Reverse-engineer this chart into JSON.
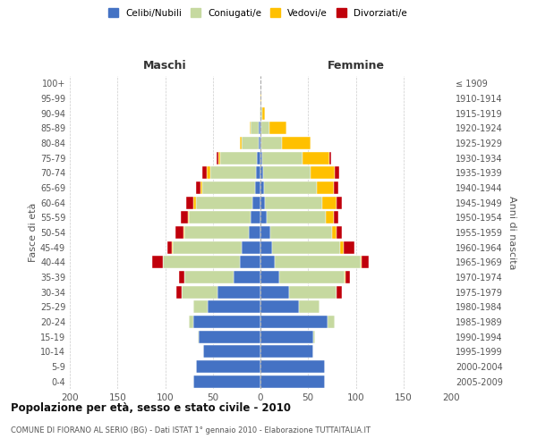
{
  "age_groups": [
    "0-4",
    "5-9",
    "10-14",
    "15-19",
    "20-24",
    "25-29",
    "30-34",
    "35-39",
    "40-44",
    "45-49",
    "50-54",
    "55-59",
    "60-64",
    "65-69",
    "70-74",
    "75-79",
    "80-84",
    "85-89",
    "90-94",
    "95-99",
    "100+"
  ],
  "birth_years": [
    "2005-2009",
    "2000-2004",
    "1995-1999",
    "1990-1994",
    "1985-1989",
    "1980-1984",
    "1975-1979",
    "1970-1974",
    "1965-1969",
    "1960-1964",
    "1955-1959",
    "1950-1954",
    "1945-1949",
    "1940-1944",
    "1935-1939",
    "1930-1934",
    "1925-1929",
    "1920-1924",
    "1915-1919",
    "1910-1914",
    "≤ 1909"
  ],
  "maschi": {
    "celibi": [
      70,
      68,
      60,
      65,
      70,
      55,
      45,
      28,
      22,
      20,
      12,
      10,
      8,
      6,
      5,
      4,
      2,
      2,
      0,
      0,
      0
    ],
    "coniugati": [
      0,
      0,
      0,
      1,
      5,
      15,
      38,
      52,
      80,
      72,
      68,
      65,
      60,
      55,
      48,
      38,
      18,
      8,
      1,
      0,
      0
    ],
    "vedovi": [
      0,
      0,
      0,
      0,
      0,
      0,
      0,
      0,
      0,
      1,
      1,
      1,
      2,
      2,
      3,
      2,
      2,
      1,
      0,
      0,
      0
    ],
    "divorziati": [
      0,
      0,
      0,
      0,
      0,
      0,
      5,
      5,
      12,
      5,
      8,
      8,
      8,
      5,
      5,
      2,
      0,
      0,
      0,
      0,
      0
    ]
  },
  "femmine": {
    "nubili": [
      68,
      68,
      55,
      55,
      70,
      40,
      30,
      20,
      15,
      12,
      10,
      7,
      5,
      4,
      3,
      2,
      1,
      1,
      0,
      0,
      0
    ],
    "coniugate": [
      0,
      0,
      0,
      2,
      8,
      22,
      50,
      68,
      90,
      72,
      65,
      62,
      60,
      55,
      50,
      42,
      22,
      8,
      2,
      0,
      0
    ],
    "vedove": [
      0,
      0,
      0,
      0,
      0,
      0,
      0,
      1,
      1,
      3,
      5,
      8,
      15,
      18,
      25,
      28,
      30,
      18,
      3,
      1,
      0
    ],
    "divorziate": [
      0,
      0,
      0,
      0,
      0,
      0,
      5,
      5,
      8,
      12,
      5,
      5,
      5,
      5,
      5,
      2,
      0,
      0,
      0,
      0,
      0
    ]
  },
  "colors": {
    "celibi": "#4472c4",
    "coniugati": "#c6d9a0",
    "vedovi": "#ffc000",
    "divorziati": "#c0000b"
  },
  "xlim": 200,
  "title": "Popolazione per età, sesso e stato civile - 2010",
  "subtitle": "COMUNE DI FIORANO AL SERIO (BG) - Dati ISTAT 1° gennaio 2010 - Elaborazione TUTTAITALIA.IT",
  "ylabel_left": "Fasce di età",
  "ylabel_right": "Anni di nascita",
  "xlabel_left": "Maschi",
  "xlabel_right": "Femmine",
  "bg_color": "#ffffff",
  "grid_color": "#cccccc"
}
